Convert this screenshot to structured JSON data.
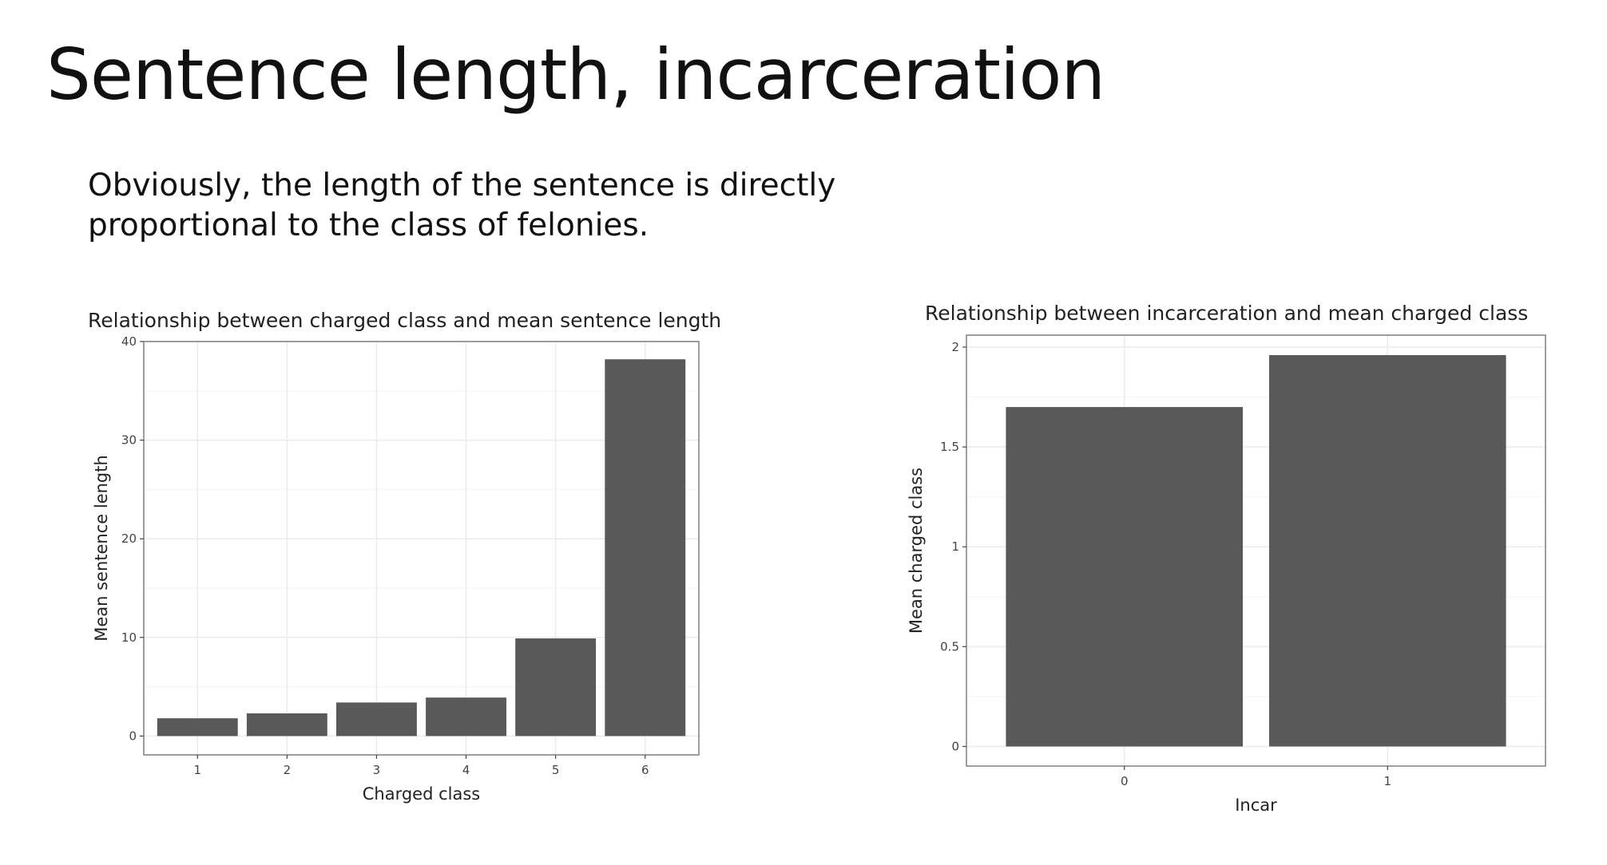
{
  "slide": {
    "title": "Sentence length, incarceration",
    "body": "Obviously, the length of the sentence is directly proportional to the class of felonies."
  },
  "colors": {
    "bar": "#595959",
    "grid_major": "#ebebeb",
    "grid_minor": "#f5f5f5",
    "panel_border": "#7f7f7f",
    "text": "#222222"
  },
  "chart_data": [
    {
      "type": "bar",
      "title": "Relationship between charged class and mean sentence length",
      "xlabel": "Charged class",
      "ylabel": "Mean sentence length",
      "categories": [
        "1",
        "2",
        "3",
        "4",
        "5",
        "6"
      ],
      "values": [
        1.8,
        2.3,
        3.4,
        3.9,
        9.9,
        38.2
      ],
      "yticks": [
        "0",
        "10",
        "20",
        "30",
        "40"
      ],
      "ylim": [
        -1.91,
        40
      ],
      "grid": true,
      "legend": "none"
    },
    {
      "type": "bar",
      "title": "Relationship between incarceration and mean charged class",
      "xlabel": "Incar",
      "ylabel": "Mean charged class",
      "categories": [
        "0",
        "1"
      ],
      "values": [
        1.7,
        1.96
      ],
      "yticks": [
        "0",
        "0.5",
        "1",
        "1.5",
        "2"
      ],
      "ylim": [
        -0.098,
        2.06
      ],
      "grid": true,
      "legend": "none"
    }
  ]
}
